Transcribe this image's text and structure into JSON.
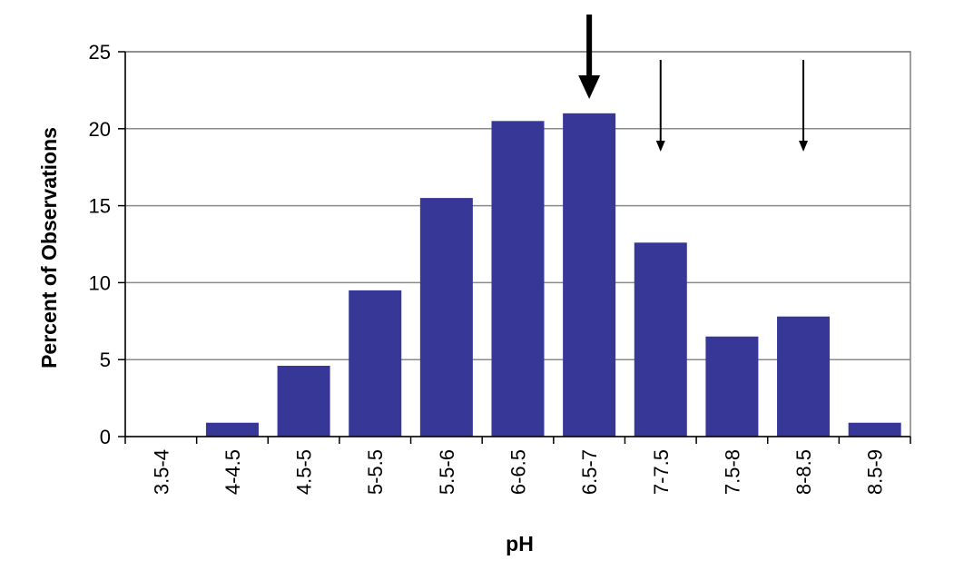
{
  "chart_data": {
    "type": "bar",
    "title": "",
    "xlabel": "pH",
    "ylabel": "Percent of Observations",
    "categories": [
      "3.5-4",
      "4-4.5",
      "4.5-5",
      "5-5.5",
      "5.5-6",
      "6-6.5",
      "6.5-7",
      "7-7.5",
      "7.5-8",
      "8-8.5",
      "8.5-9"
    ],
    "values": [
      0,
      0.9,
      4.6,
      9.5,
      15.5,
      20.5,
      21.0,
      12.6,
      6.5,
      7.8,
      0.9
    ],
    "ylim": [
      0,
      25
    ],
    "yticks": [
      0,
      5,
      10,
      15,
      20,
      25
    ],
    "grid": true,
    "legend": "none",
    "bar_color": "#363797",
    "annotations": [
      {
        "type": "arrow",
        "style": "thick",
        "category": "6.5-7"
      },
      {
        "type": "arrow",
        "style": "thin",
        "category": "7-7.5"
      },
      {
        "type": "arrow",
        "style": "thin",
        "category": "8-8.5"
      }
    ]
  }
}
